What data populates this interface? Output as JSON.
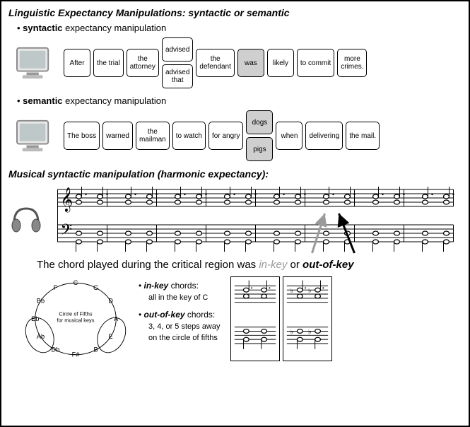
{
  "title_main": "Linguistic Expectancy Manipulations: syntactic or semantic",
  "syntactic": {
    "label_bold": "syntactic",
    "label_rest": " expectancy manipulation",
    "words": [
      "After",
      "the trial",
      "the\nattorney",
      "",
      "the\ndefendant",
      "was",
      "likely",
      "to commit",
      "more\ncrimes."
    ],
    "stack_index": 3,
    "stack": [
      "advised",
      "advised\nthat"
    ],
    "highlight_index": 5
  },
  "semantic": {
    "label_bold": "semantic",
    "label_rest": " expectancy manipulation",
    "words": [
      "The boss",
      "warned",
      "the\nmailman",
      "to watch",
      "for angry",
      "",
      "when",
      "delivering",
      "the mail."
    ],
    "stack_index": 5,
    "stack": [
      "dogs",
      "pigs"
    ],
    "stack_highlight": true
  },
  "music_title": "Musical syntactic manipulation (harmonic expectancy):",
  "chord_sentence": {
    "prefix": "The chord played during the critical region was ",
    "inkey": "in-key",
    "mid": " or ",
    "outkey": "out-of-key"
  },
  "chord_defs": {
    "in_label": "in-key",
    "in_rest": " chords:",
    "in_sub": "all in the key of C",
    "out_label": "out-of-key",
    "out_rest": " chords:",
    "out_sub": "3, 4, or 5 steps away\non the circle of fifths"
  },
  "circle": {
    "center_label": "Circle of Fifths\nfor musical keys",
    "notes": [
      "C",
      "G",
      "D",
      "A",
      "E",
      "B",
      "F#",
      "Db",
      "Ab",
      "Eb",
      "Bb",
      "F"
    ]
  },
  "colors": {
    "highlight_bg": "#cfcfcf",
    "inkey_color": "#999999",
    "outkey_color": "#000000",
    "border": "#000000"
  },
  "arrow_gray": "#9a9a9a",
  "arrow_black": "#000000"
}
